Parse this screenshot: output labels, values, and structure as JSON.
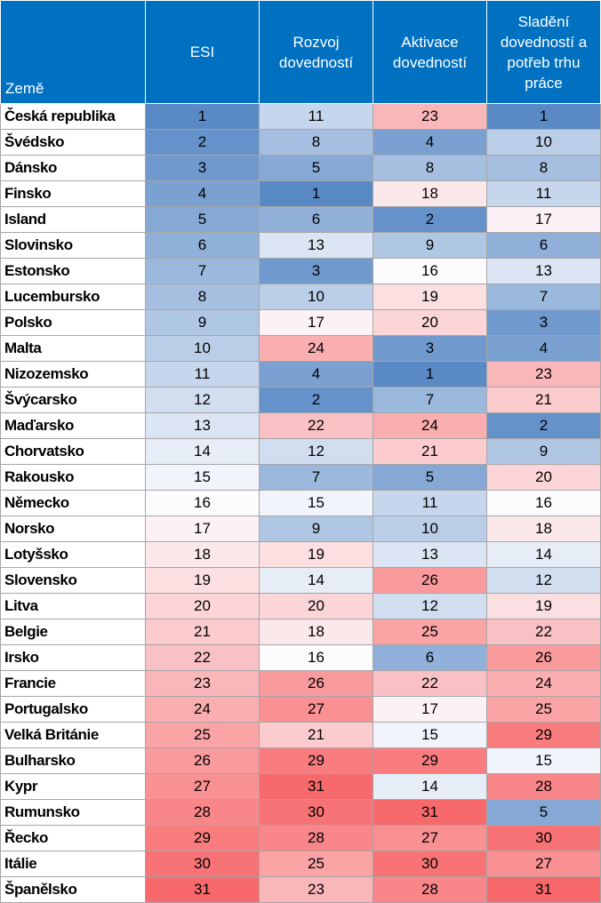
{
  "chart_data": {
    "type": "heatmap",
    "columns": [
      "Země",
      "ESI",
      "Rozvoj dovedností",
      "Aktivace dovedností",
      "Sladění dovedností a potřeb trhu práce"
    ],
    "value_range": [
      1,
      31
    ],
    "colors": {
      "low": "#5a8ac6",
      "mid": "#fcfcff",
      "high": "#f8696b",
      "header": "#0070c0"
    },
    "rows": [
      {
        "country": "Česká republika",
        "values": [
          1,
          11,
          23,
          1
        ]
      },
      {
        "country": "Švédsko",
        "values": [
          2,
          8,
          4,
          10
        ]
      },
      {
        "country": "Dánsko",
        "values": [
          3,
          5,
          8,
          8
        ]
      },
      {
        "country": "Finsko",
        "values": [
          4,
          1,
          18,
          11
        ]
      },
      {
        "country": "Island",
        "values": [
          5,
          6,
          2,
          17
        ]
      },
      {
        "country": "Slovinsko",
        "values": [
          6,
          13,
          9,
          6
        ]
      },
      {
        "country": "Estonsko",
        "values": [
          7,
          3,
          16,
          13
        ]
      },
      {
        "country": "Lucembursko",
        "values": [
          8,
          10,
          19,
          7
        ]
      },
      {
        "country": "Polsko",
        "values": [
          9,
          17,
          20,
          3
        ]
      },
      {
        "country": "Malta",
        "values": [
          10,
          24,
          3,
          4
        ]
      },
      {
        "country": "Nizozemsko",
        "values": [
          11,
          4,
          1,
          23
        ]
      },
      {
        "country": "Švýcarsko",
        "values": [
          12,
          2,
          7,
          21
        ]
      },
      {
        "country": "Maďarsko",
        "values": [
          13,
          22,
          24,
          2
        ]
      },
      {
        "country": "Chorvatsko",
        "values": [
          14,
          12,
          21,
          9
        ]
      },
      {
        "country": "Rakousko",
        "values": [
          15,
          7,
          5,
          20
        ]
      },
      {
        "country": "Německo",
        "values": [
          16,
          15,
          11,
          16
        ]
      },
      {
        "country": "Norsko",
        "values": [
          17,
          9,
          10,
          18
        ]
      },
      {
        "country": "Lotyšsko",
        "values": [
          18,
          19,
          13,
          14
        ]
      },
      {
        "country": "Slovensko",
        "values": [
          19,
          14,
          26,
          12
        ]
      },
      {
        "country": "Litva",
        "values": [
          20,
          20,
          12,
          19
        ]
      },
      {
        "country": "Belgie",
        "values": [
          21,
          18,
          25,
          22
        ]
      },
      {
        "country": "Irsko",
        "values": [
          22,
          16,
          6,
          26
        ]
      },
      {
        "country": "Francie",
        "values": [
          23,
          26,
          22,
          24
        ]
      },
      {
        "country": "Portugalsko",
        "values": [
          24,
          27,
          17,
          25
        ]
      },
      {
        "country": "Velká Británie",
        "values": [
          25,
          21,
          15,
          29
        ]
      },
      {
        "country": "Bulharsko",
        "values": [
          26,
          29,
          29,
          15
        ]
      },
      {
        "country": "Kypr",
        "values": [
          27,
          31,
          14,
          28
        ]
      },
      {
        "country": "Rumunsko",
        "values": [
          28,
          30,
          31,
          5
        ]
      },
      {
        "country": "Řecko",
        "values": [
          29,
          28,
          27,
          30
        ]
      },
      {
        "country": "Itálie",
        "values": [
          30,
          25,
          30,
          27
        ]
      },
      {
        "country": "Španělsko",
        "values": [
          31,
          23,
          28,
          31
        ]
      }
    ]
  }
}
